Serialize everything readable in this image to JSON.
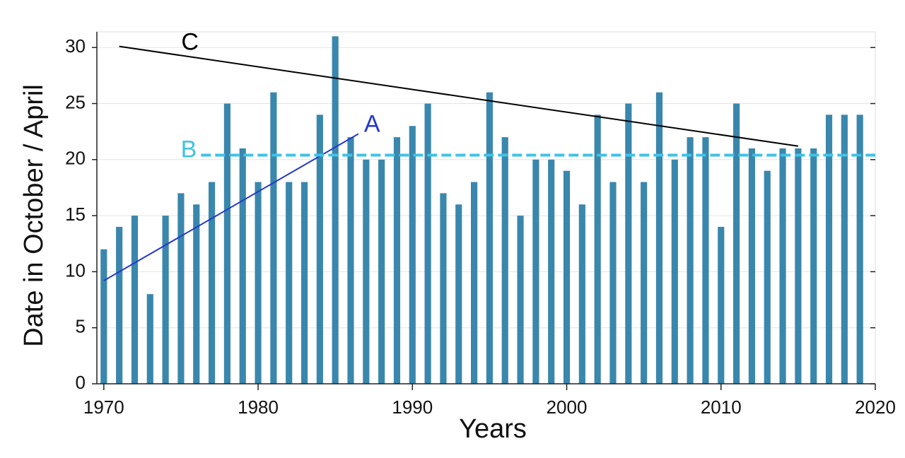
{
  "chart_data": {
    "type": "bar",
    "x_label": "Years",
    "y_label": "Date in October / April",
    "x": [
      1970,
      1971,
      1972,
      1973,
      1974,
      1975,
      1976,
      1977,
      1978,
      1979,
      1980,
      1981,
      1982,
      1983,
      1984,
      1985,
      1986,
      1987,
      1988,
      1989,
      1990,
      1991,
      1992,
      1993,
      1994,
      1995,
      1996,
      1997,
      1998,
      1999,
      2000,
      2001,
      2002,
      2003,
      2004,
      2005,
      2006,
      2007,
      2008,
      2009,
      2010,
      2011,
      2012,
      2013,
      2014,
      2015,
      2016,
      2017,
      2018,
      2019
    ],
    "values": [
      12,
      14,
      15,
      8,
      15,
      17,
      16,
      18,
      25,
      21,
      18,
      26,
      18,
      18,
      24,
      31,
      22,
      20,
      20,
      22,
      23,
      25,
      17,
      16,
      18,
      26,
      22,
      15,
      20,
      20,
      19,
      16,
      24,
      18,
      25,
      18,
      26,
      20,
      22,
      22,
      14,
      25,
      21,
      19,
      21,
      21,
      21,
      24,
      24,
      24
    ],
    "color": "#3a87ad",
    "xlim": [
      1969.55,
      2020
    ],
    "xticks": [
      1970,
      1980,
      1990,
      2000,
      2010,
      2020
    ],
    "ylim": [
      0,
      31.4
    ],
    "yticks": [
      0,
      5,
      10,
      15,
      20,
      25,
      30
    ],
    "grid": true,
    "annotations": [
      {
        "label": "A",
        "color": "#2438c8",
        "dashed": false,
        "x": [
          1970,
          1986.5
        ],
        "y": [
          9.2,
          22.3
        ]
      },
      {
        "label": "B",
        "color": "#3ec3e6",
        "dashed": true,
        "x": [
          1976.3,
          2020
        ],
        "y": [
          20.4,
          20.4
        ]
      },
      {
        "label": "C",
        "color": "#000000",
        "dashed": false,
        "x": [
          1971,
          2015
        ],
        "y": [
          30.1,
          21.2
        ]
      }
    ]
  }
}
